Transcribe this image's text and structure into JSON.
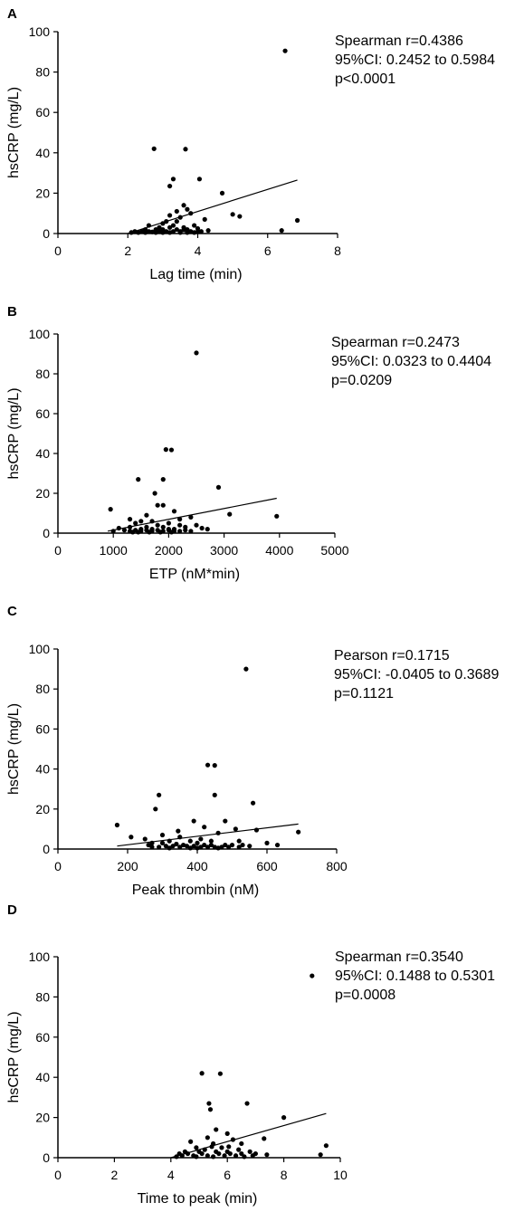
{
  "chart_data": [
    {
      "type": "scatter",
      "panel": "A",
      "xlabel": "Lag time (min)",
      "ylabel": "hsCRP (mg/L)",
      "xlim": [
        0,
        8
      ],
      "ylim": [
        0,
        100
      ],
      "xticks": [
        "0",
        "2",
        "4",
        "6",
        "8"
      ],
      "yticks": [
        "0",
        "20",
        "40",
        "60",
        "80",
        "100"
      ],
      "annotation": [
        "Spearman r=0.4386",
        "95%CI: 0.2452 to 0.5984",
        "p<0.0001"
      ],
      "trendline": {
        "x": [
          2.0,
          6.85
        ],
        "y": [
          0.0,
          26.5
        ]
      },
      "points": [
        [
          6.5,
          90.5
        ],
        [
          2.75,
          42
        ],
        [
          3.65,
          41.8
        ],
        [
          3.3,
          27
        ],
        [
          4.05,
          27
        ],
        [
          3.2,
          23.5
        ],
        [
          4.7,
          20
        ],
        [
          6.85,
          6.5
        ],
        [
          3.6,
          14
        ],
        [
          3.7,
          12
        ],
        [
          3.4,
          11
        ],
        [
          3.8,
          10
        ],
        [
          3.2,
          9
        ],
        [
          3.5,
          8
        ],
        [
          4.2,
          7
        ],
        [
          3.1,
          6
        ],
        [
          3.4,
          6
        ],
        [
          3.0,
          5
        ],
        [
          3.3,
          4
        ],
        [
          2.6,
          4
        ],
        [
          3.9,
          4
        ],
        [
          2.9,
          3
        ],
        [
          3.2,
          3
        ],
        [
          3.6,
          3
        ],
        [
          2.5,
          2
        ],
        [
          2.8,
          2
        ],
        [
          3.0,
          2
        ],
        [
          3.4,
          2
        ],
        [
          3.7,
          2
        ],
        [
          2.2,
          1
        ],
        [
          2.4,
          1
        ],
        [
          2.6,
          1
        ],
        [
          2.7,
          0.8
        ],
        [
          2.9,
          1
        ],
        [
          3.1,
          1
        ],
        [
          3.3,
          1
        ],
        [
          3.5,
          1
        ],
        [
          3.8,
          1
        ],
        [
          4.0,
          1
        ],
        [
          4.1,
          1
        ],
        [
          4.3,
          1.5
        ],
        [
          2.1,
          0.5
        ],
        [
          2.3,
          0.5
        ],
        [
          2.5,
          0.5
        ],
        [
          2.8,
          0.5
        ],
        [
          3.0,
          0.5
        ],
        [
          3.2,
          0.5
        ],
        [
          3.5,
          0.5
        ],
        [
          3.7,
          0.5
        ],
        [
          3.9,
          0.5
        ],
        [
          3.6,
          1.8
        ],
        [
          4.0,
          2.5
        ],
        [
          5.0,
          9.5
        ],
        [
          5.2,
          8.5
        ],
        [
          6.4,
          1.5
        ]
      ]
    },
    {
      "type": "scatter",
      "panel": "B",
      "xlabel": "ETP (nM*min)",
      "ylabel": "hsCRP (mg/L)",
      "xlim": [
        0,
        5000
      ],
      "ylim": [
        0,
        100
      ],
      "xticks": [
        "0",
        "1000",
        "2000",
        "3000",
        "4000",
        "5000"
      ],
      "yticks": [
        "0",
        "20",
        "40",
        "60",
        "80",
        "100"
      ],
      "annotation": [
        "Spearman r=0.2473",
        "95%CI: 0.0323 to 0.4404",
        "p=0.0209"
      ],
      "trendline": {
        "x": [
          900,
          3950
        ],
        "y": [
          1.0,
          17.5
        ]
      },
      "points": [
        [
          2500,
          90.5
        ],
        [
          1950,
          42
        ],
        [
          2050,
          41.8
        ],
        [
          1450,
          27
        ],
        [
          1900,
          27
        ],
        [
          2900,
          23
        ],
        [
          1750,
          20
        ],
        [
          1800,
          14
        ],
        [
          1900,
          14
        ],
        [
          950,
          12
        ],
        [
          2100,
          11
        ],
        [
          3100,
          9.5
        ],
        [
          3950,
          8.5
        ],
        [
          1600,
          9
        ],
        [
          1300,
          7
        ],
        [
          2400,
          8
        ],
        [
          1500,
          6
        ],
        [
          1700,
          6
        ],
        [
          2000,
          5
        ],
        [
          1400,
          5
        ],
        [
          1800,
          4
        ],
        [
          2200,
          4
        ],
        [
          1600,
          3
        ],
        [
          1100,
          2.5
        ],
        [
          1300,
          3
        ],
        [
          1900,
          3
        ],
        [
          2300,
          3
        ],
        [
          2600,
          2.5
        ],
        [
          2700,
          2
        ],
        [
          1500,
          2
        ],
        [
          1700,
          2
        ],
        [
          2000,
          2
        ],
        [
          2100,
          2
        ],
        [
          1200,
          1.5
        ],
        [
          1400,
          1.5
        ],
        [
          1600,
          1.5
        ],
        [
          1800,
          1.5
        ],
        [
          2000,
          1.5
        ],
        [
          2200,
          1
        ],
        [
          2400,
          1
        ],
        [
          1000,
          1
        ],
        [
          1300,
          1
        ],
        [
          1500,
          1
        ],
        [
          1700,
          1
        ],
        [
          1900,
          1
        ],
        [
          2100,
          1
        ],
        [
          2300,
          1.5
        ],
        [
          1450,
          0.5
        ],
        [
          1650,
          0.5
        ],
        [
          1850,
          0.5
        ],
        [
          2050,
          0.5
        ],
        [
          1350,
          0.5
        ],
        [
          2500,
          4
        ],
        [
          2200,
          7
        ]
      ]
    },
    {
      "type": "scatter",
      "panel": "C",
      "xlabel": "Peak thrombin (nM)",
      "ylabel": "hsCRP (mg/L)",
      "xlim": [
        0,
        800
      ],
      "ylim": [
        0,
        100
      ],
      "xticks": [
        "0",
        "200",
        "400",
        "600",
        "800"
      ],
      "yticks": [
        "0",
        "20",
        "40",
        "60",
        "80",
        "100"
      ],
      "annotation": [
        "Pearson r=0.1715",
        "95%CI: -0.0405 to 0.3689",
        "p=0.1121"
      ],
      "trendline": {
        "x": [
          170,
          690
        ],
        "y": [
          1.5,
          12.5
        ]
      },
      "points": [
        [
          540,
          90
        ],
        [
          430,
          42
        ],
        [
          450,
          41.8
        ],
        [
          290,
          27
        ],
        [
          450,
          27
        ],
        [
          560,
          23
        ],
        [
          280,
          20
        ],
        [
          480,
          14
        ],
        [
          390,
          14
        ],
        [
          170,
          12
        ],
        [
          420,
          11
        ],
        [
          510,
          10
        ],
        [
          690,
          8.5
        ],
        [
          210,
          6
        ],
        [
          300,
          7
        ],
        [
          350,
          6
        ],
        [
          460,
          8
        ],
        [
          320,
          4
        ],
        [
          380,
          4
        ],
        [
          400,
          3
        ],
        [
          250,
          5
        ],
        [
          270,
          3
        ],
        [
          300,
          3
        ],
        [
          340,
          2.5
        ],
        [
          360,
          2
        ],
        [
          420,
          2
        ],
        [
          440,
          2
        ],
        [
          480,
          2
        ],
        [
          500,
          2
        ],
        [
          530,
          2
        ],
        [
          310,
          1.5
        ],
        [
          330,
          1.5
        ],
        [
          370,
          1.5
        ],
        [
          390,
          1.5
        ],
        [
          410,
          1
        ],
        [
          430,
          1
        ],
        [
          450,
          1
        ],
        [
          470,
          1
        ],
        [
          490,
          1
        ],
        [
          350,
          1
        ],
        [
          290,
          1
        ],
        [
          270,
          1
        ],
        [
          260,
          2
        ],
        [
          320,
          0.5
        ],
        [
          380,
          0.5
        ],
        [
          400,
          0.5
        ],
        [
          460,
          0.5
        ],
        [
          520,
          1
        ],
        [
          550,
          1.5
        ],
        [
          600,
          3
        ],
        [
          630,
          2
        ],
        [
          570,
          9.5
        ],
        [
          410,
          5
        ],
        [
          440,
          4
        ],
        [
          520,
          4
        ],
        [
          345,
          9
        ]
      ]
    },
    {
      "type": "scatter",
      "panel": "D",
      "xlabel": "Time to peak (min)",
      "ylabel": "hsCRP (mg/L)",
      "xlim": [
        0,
        10
      ],
      "ylim": [
        0,
        100
      ],
      "xticks": [
        "0",
        "2",
        "4",
        "6",
        "8",
        "10"
      ],
      "yticks": [
        "0",
        "20",
        "40",
        "60",
        "80",
        "100"
      ],
      "annotation": [
        "Spearman r=0.3540",
        "95%CI: 0.1488 to 0.5301",
        "p=0.0008"
      ],
      "trendline": {
        "x": [
          4.0,
          9.5
        ],
        "y": [
          0.0,
          22.0
        ]
      },
      "points": [
        [
          9.0,
          90.5
        ],
        [
          5.1,
          42
        ],
        [
          5.75,
          41.8
        ],
        [
          5.35,
          27
        ],
        [
          6.7,
          27
        ],
        [
          5.4,
          24
        ],
        [
          8.0,
          20
        ],
        [
          5.6,
          14
        ],
        [
          6.0,
          12
        ],
        [
          5.3,
          10
        ],
        [
          7.3,
          9.5
        ],
        [
          6.2,
          9
        ],
        [
          4.7,
          8
        ],
        [
          5.5,
          7
        ],
        [
          6.5,
          7
        ],
        [
          9.5,
          6
        ],
        [
          5.8,
          5
        ],
        [
          4.9,
          5
        ],
        [
          5.2,
          4
        ],
        [
          6.4,
          4
        ],
        [
          4.5,
          3
        ],
        [
          5.0,
          3
        ],
        [
          5.6,
          3
        ],
        [
          6.0,
          3
        ],
        [
          6.8,
          3
        ],
        [
          4.3,
          2
        ],
        [
          4.6,
          2
        ],
        [
          5.1,
          2
        ],
        [
          5.7,
          2
        ],
        [
          6.1,
          2
        ],
        [
          6.5,
          2
        ],
        [
          7.0,
          2
        ],
        [
          4.4,
          1
        ],
        [
          4.8,
          1
        ],
        [
          5.3,
          1
        ],
        [
          5.9,
          1
        ],
        [
          6.3,
          1
        ],
        [
          6.9,
          1
        ],
        [
          4.2,
          0.5
        ],
        [
          4.9,
          0.5
        ],
        [
          5.5,
          0.5
        ],
        [
          6.6,
          0.5
        ],
        [
          9.3,
          1.5
        ],
        [
          7.4,
          1.5
        ],
        [
          5.45,
          5.5
        ],
        [
          6.05,
          5.5
        ]
      ]
    }
  ]
}
